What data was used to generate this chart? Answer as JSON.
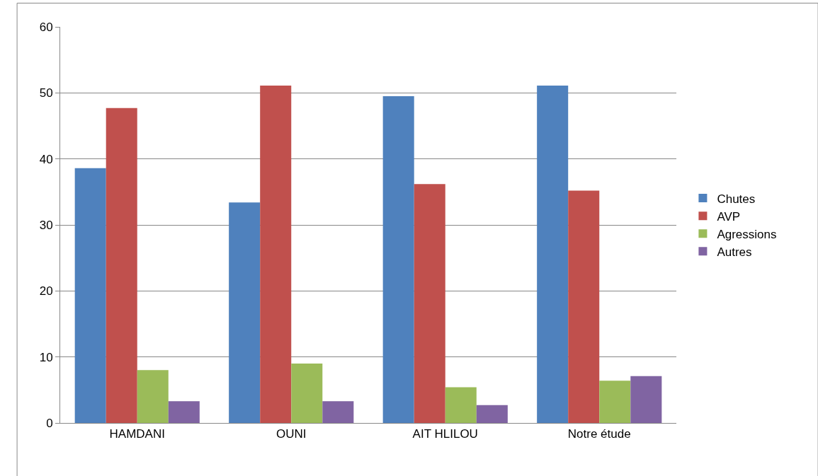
{
  "chart_data": {
    "type": "bar",
    "categories": [
      "HAMDANI",
      "OUNI",
      "AIT HLILOU",
      "Notre étude"
    ],
    "series": [
      {
        "name": "Chutes",
        "color": "#4f81bd",
        "values": [
          38.6,
          33.4,
          49.5,
          51.1
        ]
      },
      {
        "name": "AVP",
        "color": "#c0504d",
        "values": [
          47.7,
          51.1,
          36.2,
          35.2
        ]
      },
      {
        "name": "Agressions",
        "color": "#9bbb59",
        "values": [
          8.0,
          9.0,
          5.4,
          6.4
        ]
      },
      {
        "name": "Autres",
        "color": "#8064a2",
        "values": [
          3.3,
          3.3,
          2.7,
          7.1
        ]
      }
    ],
    "ylim": [
      0,
      60
    ],
    "yticks": [
      0,
      10,
      20,
      30,
      40,
      50,
      60
    ],
    "grid": "y",
    "legend": "right"
  }
}
